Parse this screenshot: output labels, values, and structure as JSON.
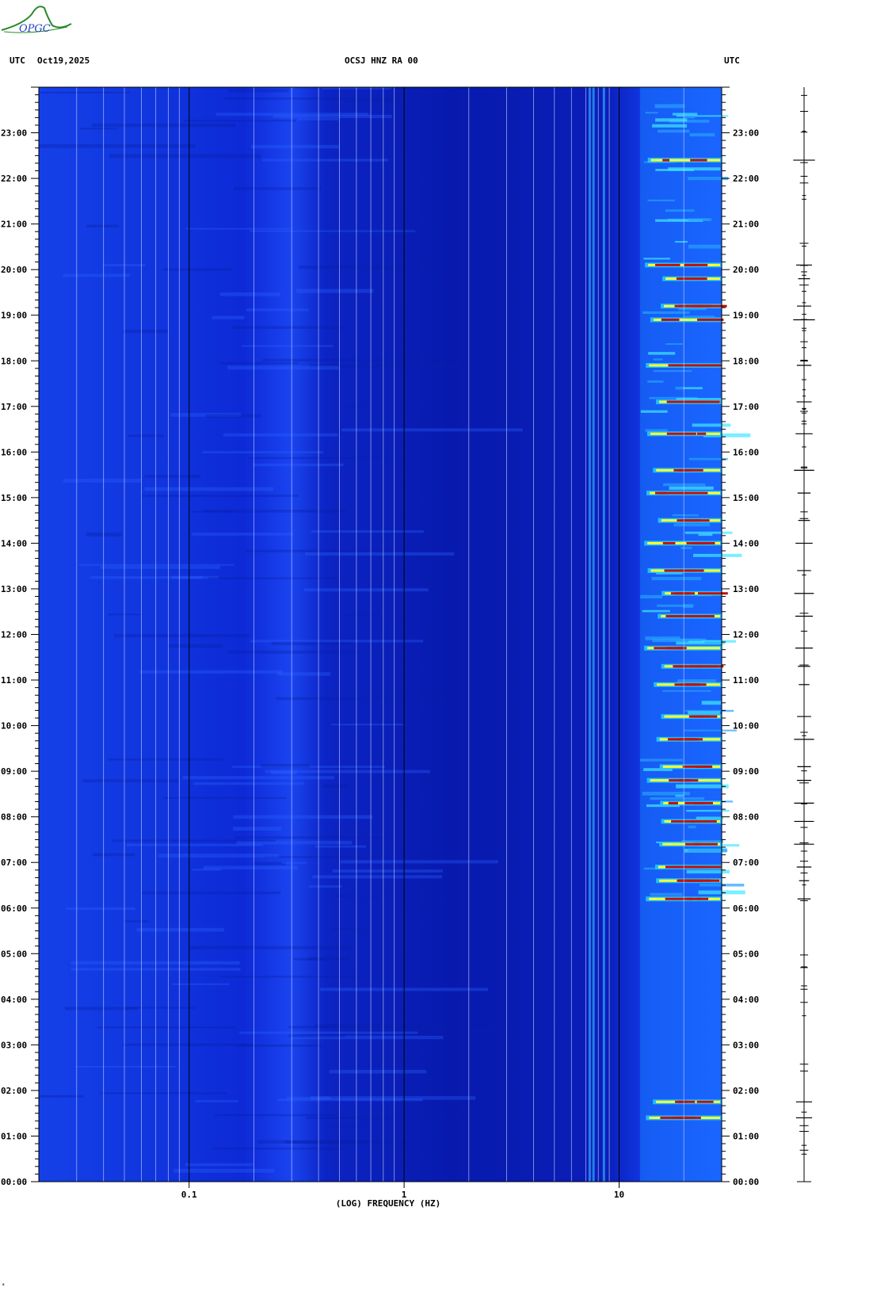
{
  "header": {
    "left_tz": "UTC",
    "date": "Oct19,2025",
    "station": "OCSJ HNZ RA 00",
    "right_tz": "UTC"
  },
  "logo": {
    "text": "OPGC"
  },
  "colors": {
    "background": "#0a1ecf",
    "grid": "#000000"
  },
  "chart_data": {
    "type": "heatmap",
    "title": "OCSJ HNZ RA 00",
    "xlabel": "(LOG) FREQUENCY (HZ)",
    "x_scale": "log",
    "x_ticks": [
      {
        "value": 0.1,
        "label": "0.1"
      },
      {
        "value": 1,
        "label": "1"
      },
      {
        "value": 10,
        "label": "10"
      }
    ],
    "x_range_hz": [
      0.02,
      30
    ],
    "y_range_hours": [
      0,
      24
    ],
    "y_ticks": [
      "00:00",
      "01:00",
      "02:00",
      "03:00",
      "04:00",
      "05:00",
      "06:00",
      "07:00",
      "08:00",
      "09:00",
      "10:00",
      "11:00",
      "12:00",
      "13:00",
      "14:00",
      "15:00",
      "16:00",
      "17:00",
      "18:00",
      "19:00",
      "20:00",
      "21:00",
      "22:00",
      "23:00"
    ],
    "colormap": [
      "#0010a8",
      "#1848ff",
      "#22c8ff",
      "#ffff30",
      "#c01010"
    ],
    "hot_events_hours": [
      1.4,
      1.75,
      6.2,
      6.6,
      6.9,
      7.4,
      7.9,
      8.3,
      8.8,
      9.1,
      9.7,
      10.2,
      10.9,
      11.3,
      11.7,
      12.4,
      12.9,
      13.4,
      14.0,
      14.5,
      15.1,
      15.6,
      16.4,
      17.1,
      17.9,
      18.9,
      19.2,
      19.8,
      20.1,
      22.4
    ]
  },
  "trace": {
    "label": ""
  }
}
